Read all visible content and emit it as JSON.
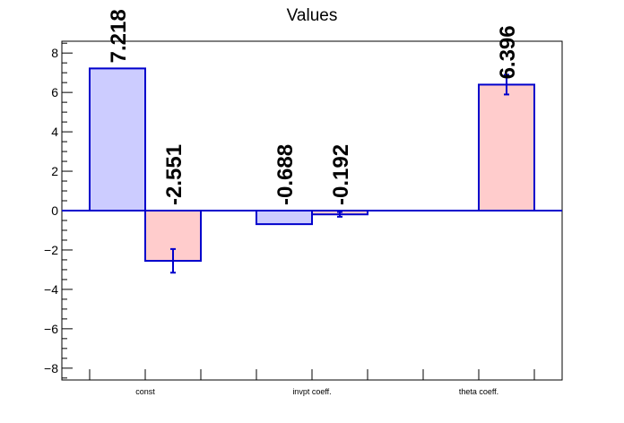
{
  "chart_data": {
    "type": "bar",
    "title": "Values",
    "xlabel": "",
    "ylabel": "",
    "ylim": [
      -8.6,
      8.6
    ],
    "yticks": [
      -8,
      -6,
      -4,
      -2,
      0,
      2,
      4,
      6,
      8
    ],
    "yticks_text": [
      "−8",
      "−6",
      "−4",
      "−2",
      "0",
      "2",
      "4",
      "6",
      "8"
    ],
    "categories": [
      "const",
      "invpt coeff.",
      "theta coeff."
    ],
    "series": [
      {
        "color": "#ccccff",
        "values": [
          7.218,
          -0.688,
          null
        ],
        "errors": [
          0,
          0,
          null
        ],
        "labels": [
          "7.218",
          "-0.688",
          ""
        ]
      },
      {
        "color": "#ffcccc",
        "values": [
          -2.551,
          -0.192,
          6.396
        ],
        "errors": [
          0.6,
          0.12,
          0.5
        ],
        "labels": [
          "-2.551",
          "-0.192",
          "6.396"
        ]
      }
    ],
    "colors": {
      "bar_edge": "#0000cc",
      "error_bar": "#0000cc",
      "zero_line": "#0000cc"
    },
    "grid": false,
    "legend": "none"
  }
}
